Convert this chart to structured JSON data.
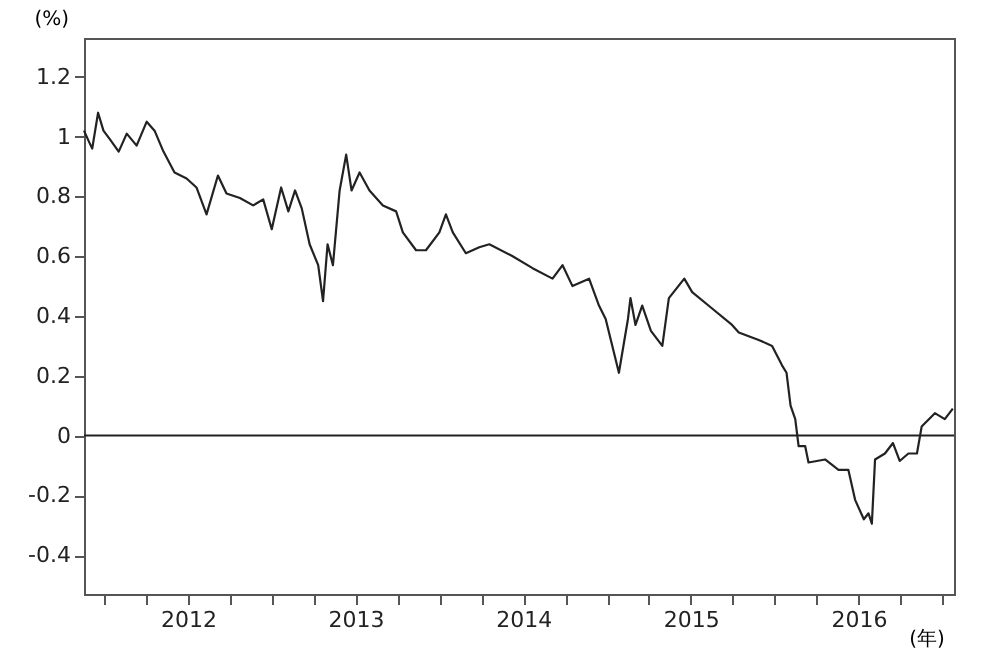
{
  "chart_data": {
    "type": "line",
    "xlabel": "(年)",
    "ylabel": "(%)",
    "xlim": [
      2011.88,
      2017.07
    ],
    "ylim": [
      -0.53,
      1.33
    ],
    "xticks": [
      {
        "value": 2012,
        "label": null
      },
      {
        "value": 2012.25,
        "label": null
      },
      {
        "value": 2012.5,
        "label": "2012"
      },
      {
        "value": 2012.75,
        "label": null
      },
      {
        "value": 2013,
        "label": null
      },
      {
        "value": 2013.25,
        "label": null
      },
      {
        "value": 2013.5,
        "label": "2013"
      },
      {
        "value": 2013.75,
        "label": null
      },
      {
        "value": 2014,
        "label": null
      },
      {
        "value": 2014.25,
        "label": null
      },
      {
        "value": 2014.5,
        "label": "2014"
      },
      {
        "value": 2014.75,
        "label": null
      },
      {
        "value": 2015,
        "label": null
      },
      {
        "value": 2015.25,
        "label": null
      },
      {
        "value": 2015.5,
        "label": "2015"
      },
      {
        "value": 2015.75,
        "label": null
      },
      {
        "value": 2016,
        "label": null
      },
      {
        "value": 2016.25,
        "label": null
      },
      {
        "value": 2016.5,
        "label": "2016"
      },
      {
        "value": 2016.75,
        "label": null
      },
      {
        "value": 2017,
        "label": null
      }
    ],
    "yticks": [
      -0.4,
      -0.2,
      0,
      0.2,
      0.4,
      0.6,
      0.8,
      1,
      1.2
    ],
    "grid": false,
    "marker": "none",
    "line_style": "solid",
    "ref_lines": [
      {
        "axis": "y",
        "value": 0,
        "color": "#222222"
      }
    ],
    "series": [
      {
        "color": "#222222",
        "x": [
          2011.88,
          2011.908,
          2011.929,
          2011.964,
          2011.996,
          2012.036,
          2012.087,
          2012.135,
          2012.194,
          2012.254,
          2012.301,
          2012.354,
          2012.42,
          2012.492,
          2012.551,
          2012.611,
          2012.679,
          2012.73,
          2012.81,
          2012.889,
          2012.949,
          2013.0,
          2013.056,
          2013.099,
          2013.139,
          2013.179,
          2013.226,
          2013.277,
          2013.306,
          2013.333,
          2013.365,
          2013.405,
          2013.444,
          2013.476,
          2013.524,
          2013.583,
          2013.663,
          2013.742,
          2013.782,
          2013.861,
          2013.92,
          2014.0,
          2014.039,
          2014.08,
          2014.158,
          2014.238,
          2014.298,
          2014.437,
          2014.556,
          2014.675,
          2014.735,
          2014.794,
          2014.893,
          2014.952,
          2014.992,
          2015.071,
          2015.125,
          2015.14,
          2015.17,
          2015.21,
          2015.262,
          2015.33,
          2015.369,
          2015.461,
          2015.508,
          2015.627,
          2015.746,
          2015.786,
          2015.905,
          2015.985,
          2016.044,
          2016.071,
          2016.095,
          2016.123,
          2016.143,
          2016.182,
          2016.202,
          2016.301,
          2016.381,
          2016.44,
          2016.48,
          2016.532,
          2016.56,
          2016.58,
          2016.599,
          2016.658,
          2016.706,
          2016.746,
          2016.798,
          2016.849,
          2016.877,
          2016.956,
          2017.015,
          2017.063
        ],
        "values": [
          1.02,
          0.985,
          0.96,
          1.08,
          1.02,
          0.99,
          0.95,
          1.01,
          0.97,
          1.05,
          1.02,
          0.95,
          0.88,
          0.86,
          0.83,
          0.74,
          0.87,
          0.81,
          0.795,
          0.77,
          0.79,
          0.69,
          0.83,
          0.75,
          0.82,
          0.76,
          0.64,
          0.57,
          0.45,
          0.64,
          0.57,
          0.82,
          0.94,
          0.82,
          0.88,
          0.82,
          0.77,
          0.75,
          0.68,
          0.62,
          0.62,
          0.68,
          0.74,
          0.68,
          0.61,
          0.63,
          0.64,
          0.6,
          0.56,
          0.525,
          0.57,
          0.5,
          0.525,
          0.435,
          0.39,
          0.21,
          0.39,
          0.46,
          0.37,
          0.435,
          0.35,
          0.3,
          0.46,
          0.525,
          0.48,
          0.425,
          0.37,
          0.345,
          0.32,
          0.3,
          0.235,
          0.21,
          0.1,
          0.055,
          -0.035,
          -0.035,
          -0.09,
          -0.08,
          -0.115,
          -0.115,
          -0.215,
          -0.28,
          -0.26,
          -0.295,
          -0.08,
          -0.06,
          -0.025,
          -0.085,
          -0.06,
          -0.06,
          0.03,
          0.075,
          0.055,
          0.09
        ]
      }
    ]
  }
}
